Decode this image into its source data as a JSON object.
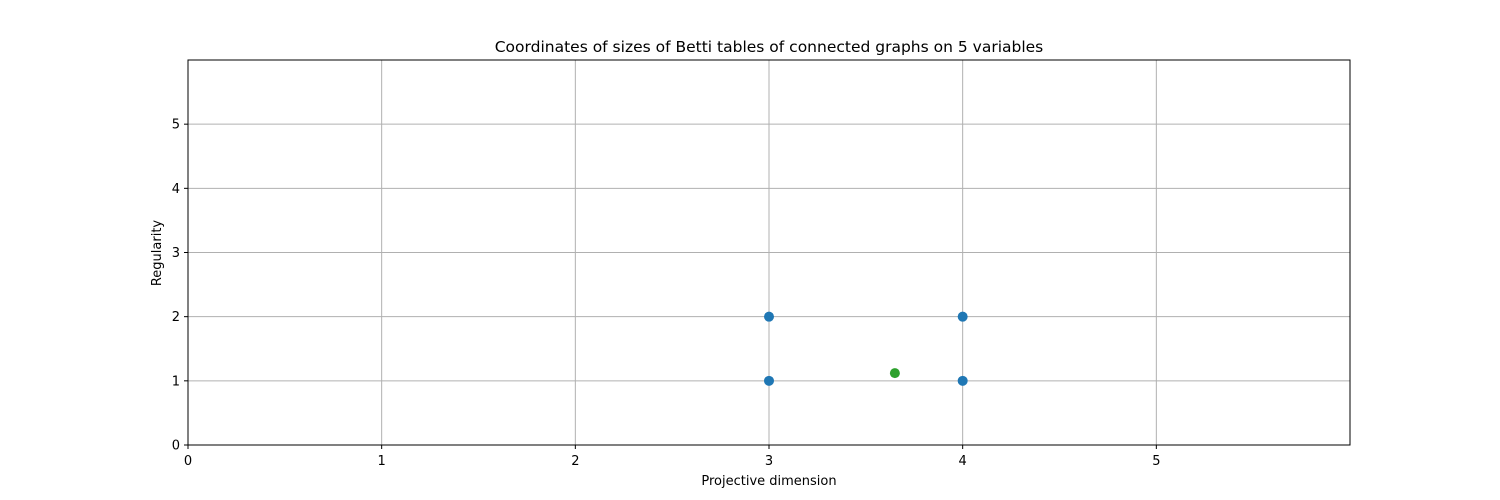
{
  "chart_data": {
    "type": "scatter",
    "title": "Coordinates of sizes of Betti tables of connected graphs on 5 variables",
    "xlabel": "Projective dimension",
    "ylabel": "Regularity",
    "xlim": [
      0,
      6
    ],
    "ylim": [
      0,
      6
    ],
    "xticks": [
      0,
      1,
      2,
      3,
      4,
      5
    ],
    "yticks": [
      0,
      1,
      2,
      3,
      4,
      5
    ],
    "grid": true,
    "series": [
      {
        "color": "#1f77b4",
        "points": [
          {
            "x": 3,
            "y": 1
          },
          {
            "x": 3,
            "y": 2
          },
          {
            "x": 4,
            "y": 1
          },
          {
            "x": 4,
            "y": 2
          }
        ]
      },
      {
        "color": "#2ca02c",
        "points": [
          {
            "x": 3.65,
            "y": 1.12
          }
        ]
      }
    ]
  }
}
